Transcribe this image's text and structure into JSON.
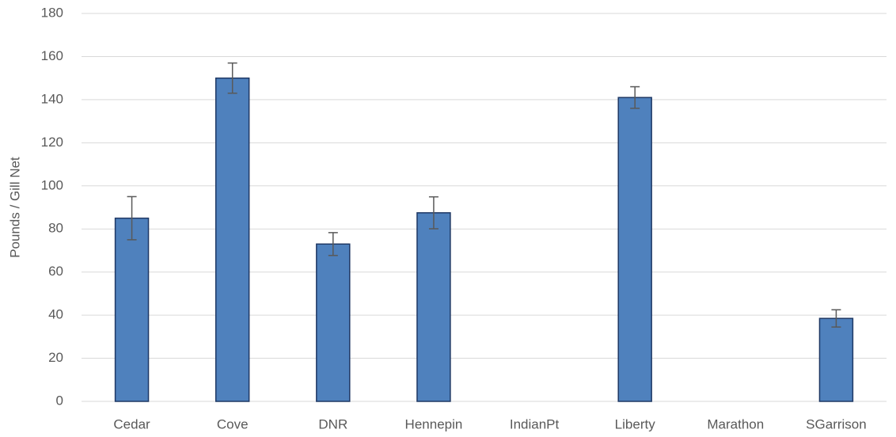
{
  "chart_data": {
    "type": "bar",
    "y_label": "Pounds / Gill Net",
    "categories": [
      "Cedar",
      "Cove",
      "DNR",
      "Hennepin",
      "IndianPt",
      "Liberty",
      "Marathon",
      "SGarrison"
    ],
    "values": [
      85,
      150,
      73,
      87.5,
      null,
      141,
      null,
      38.5
    ],
    "errors": [
      10,
      7,
      5.3,
      7.4,
      null,
      5,
      null,
      4
    ],
    "color": "#4f81bd",
    "edge_color": "#1f3864",
    "error_color": "#595959",
    "ylim": [
      0,
      180
    ],
    "yticks": [
      0,
      20,
      40,
      60,
      80,
      100,
      120,
      140,
      160,
      180
    ],
    "grid": true
  }
}
